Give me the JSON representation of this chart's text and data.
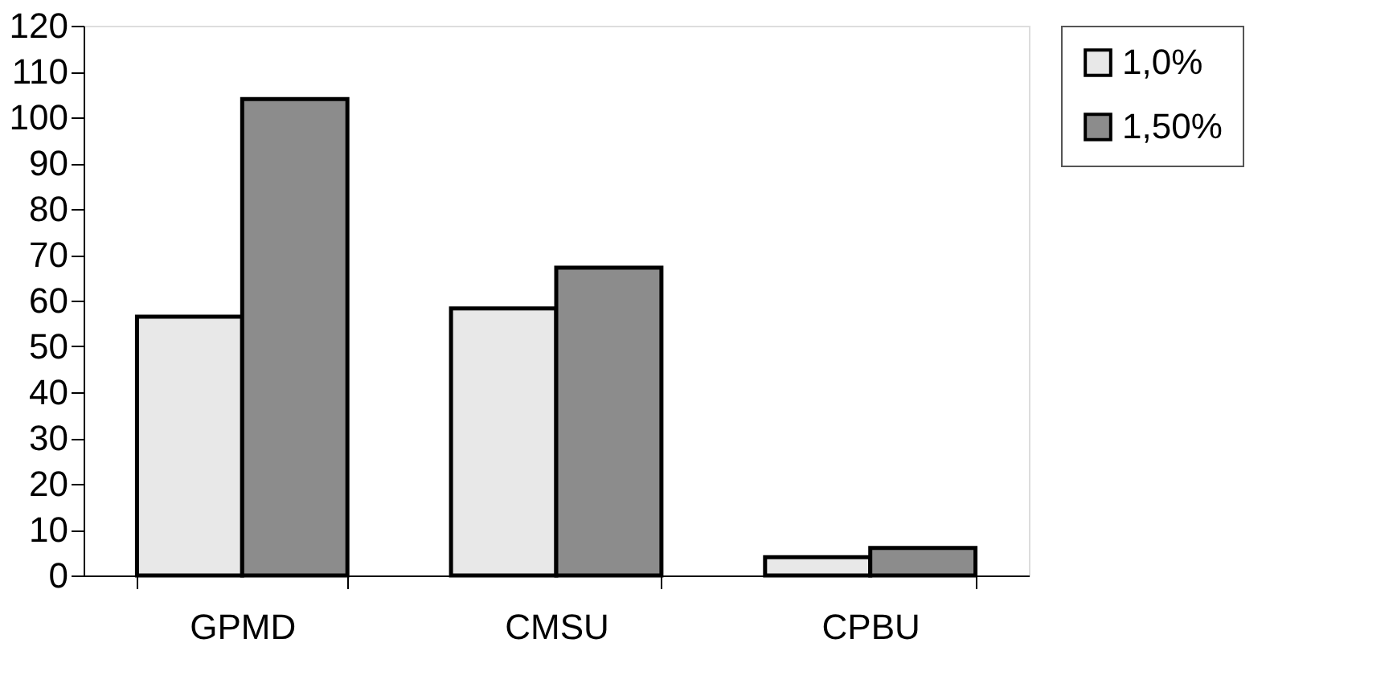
{
  "chart_data": {
    "type": "bar",
    "categories": [
      "GPMD",
      "CMSU",
      "CPBU"
    ],
    "series": [
      {
        "name": "1,0%",
        "color": "#e8e8e8",
        "values": [
          56.5,
          58.3,
          4
        ]
      },
      {
        "name": "1,50%",
        "color": "#8c8c8c",
        "values": [
          104,
          67.2,
          6
        ]
      }
    ],
    "ylim": [
      0,
      120
    ],
    "yticks": [
      0,
      10,
      20,
      30,
      40,
      50,
      60,
      70,
      80,
      90,
      100,
      110,
      120
    ],
    "grid": false,
    "legend": "right"
  }
}
